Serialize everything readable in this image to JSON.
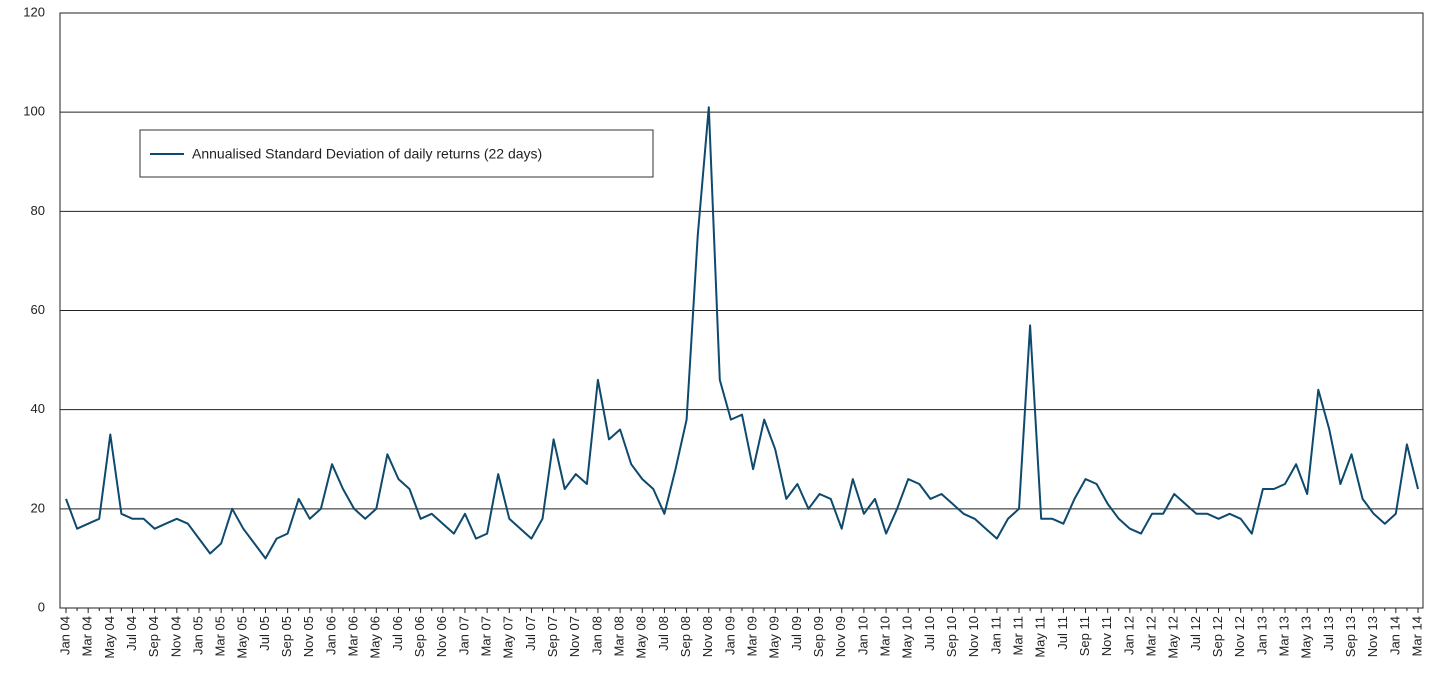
{
  "chart_data": {
    "type": "line",
    "categories": [
      "Jan 04",
      null,
      "Mar 04",
      null,
      "May 04",
      null,
      "Jul 04",
      null,
      "Sep 04",
      null,
      "Nov 04",
      null,
      "Jan 05",
      null,
      "Mar 05",
      null,
      "May 05",
      null,
      "Jul 05",
      null,
      "Sep 05",
      null,
      "Nov 05",
      null,
      "Jan 06",
      null,
      "Mar 06",
      null,
      "May 06",
      null,
      "Jul 06",
      null,
      "Sep 06",
      null,
      "Nov 06",
      null,
      "Jan 07",
      null,
      "Mar 07",
      null,
      "May 07",
      null,
      "Jul 07",
      null,
      "Sep 07",
      null,
      "Nov 07",
      null,
      "Jan 08",
      null,
      "Mar 08",
      null,
      "May 08",
      null,
      "Jul 08",
      null,
      "Sep 08",
      null,
      "Nov 08",
      null,
      "Jan 09",
      null,
      "Mar 09",
      null,
      "May 09",
      null,
      "Jul 09",
      null,
      "Sep 09",
      null,
      "Nov 09",
      null,
      "Jan 10",
      null,
      "Mar 10",
      null,
      "May 10",
      null,
      "Jul 10",
      null,
      "Sep 10",
      null,
      "Nov 10",
      null,
      "Jan 11",
      null,
      "Mar 11",
      null,
      "May 11",
      null,
      "Jul 11",
      null,
      "Sep 11",
      null,
      "Nov 11",
      null,
      "Jan 12",
      null,
      "Mar 12",
      null,
      "May 12",
      null,
      "Jul 12",
      null,
      "Sep 12",
      null,
      "Nov 12",
      null,
      "Jan 13",
      null,
      "Mar 13",
      null,
      "May 13",
      null,
      "Jul 13",
      null,
      "Sep 13",
      null,
      "Nov 13",
      null,
      "Jan 14",
      null,
      "Mar 14"
    ],
    "series": [
      {
        "name": "Annualised Standard Deviation of daily returns (22 days)",
        "color": "#0e4a6e",
        "values": [
          22,
          16,
          17,
          18,
          35,
          19,
          18,
          18,
          16,
          17,
          18,
          17,
          14,
          11,
          13,
          20,
          16,
          13,
          10,
          14,
          15,
          22,
          18,
          20,
          29,
          24,
          20,
          18,
          20,
          31,
          26,
          24,
          18,
          19,
          17,
          15,
          19,
          14,
          15,
          27,
          18,
          16,
          14,
          18,
          34,
          24,
          27,
          25,
          46,
          34,
          36,
          29,
          26,
          24,
          19,
          28,
          38,
          75,
          101,
          46,
          38,
          39,
          28,
          38,
          32,
          22,
          25,
          20,
          23,
          22,
          16,
          26,
          19,
          22,
          15,
          20,
          26,
          25,
          22,
          23,
          21,
          19,
          18,
          16,
          14,
          18,
          20,
          57,
          18,
          18,
          17,
          22,
          26,
          25,
          21,
          18,
          16,
          15,
          19,
          19,
          23,
          21,
          19,
          19,
          18,
          19,
          18,
          15,
          24,
          24,
          25,
          29,
          23,
          44,
          36,
          25,
          31,
          22,
          19,
          17,
          19,
          33,
          24
        ]
      }
    ],
    "ylim": [
      0,
      120
    ],
    "yticks": [
      0,
      20,
      40,
      60,
      80,
      100,
      120
    ],
    "grid": true
  }
}
